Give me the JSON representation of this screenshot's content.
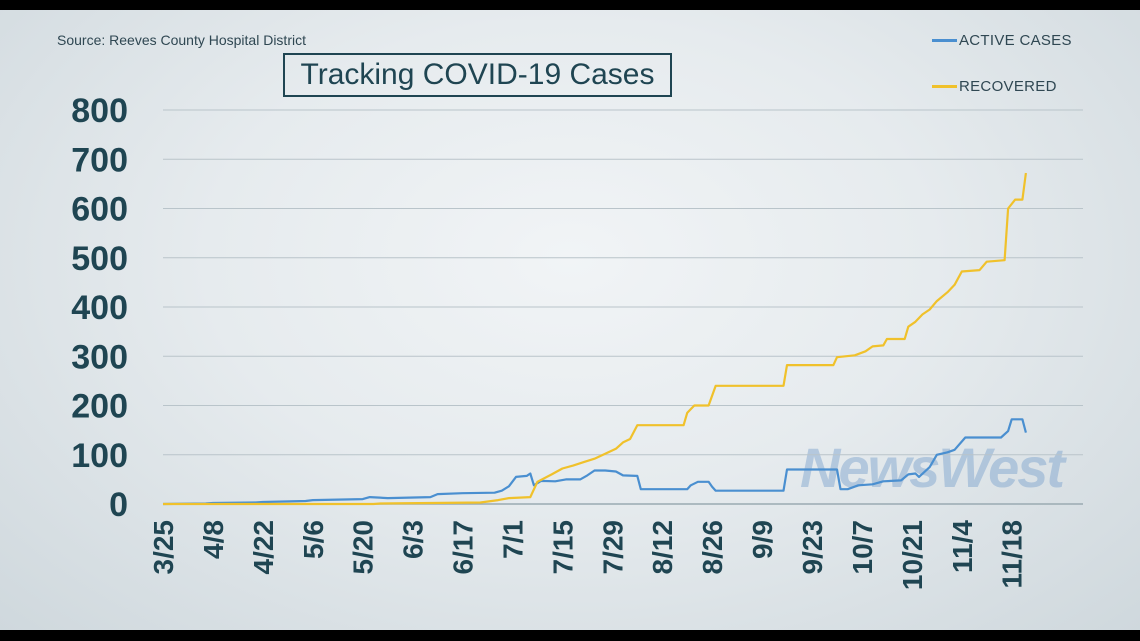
{
  "source": "Source: Reeves County Hospital District",
  "watermark": "NewsWest",
  "chart_data": {
    "type": "line",
    "title": "Tracking COVID-19 Cases",
    "xlabel": "",
    "ylabel": "",
    "ylim": [
      0,
      800
    ],
    "yticks": [
      0,
      100,
      200,
      300,
      400,
      500,
      600,
      700,
      800
    ],
    "x_range": [
      "2020-03-25",
      "2020-12-08"
    ],
    "xticks": [
      {
        "date": "2020-03-25",
        "label": "3/25"
      },
      {
        "date": "2020-04-08",
        "label": "4/8"
      },
      {
        "date": "2020-04-22",
        "label": "4/22"
      },
      {
        "date": "2020-05-06",
        "label": "5/6"
      },
      {
        "date": "2020-05-20",
        "label": "5/20"
      },
      {
        "date": "2020-06-03",
        "label": "6/3"
      },
      {
        "date": "2020-06-17",
        "label": "6/17"
      },
      {
        "date": "2020-07-01",
        "label": "7/1"
      },
      {
        "date": "2020-07-15",
        "label": "7/15"
      },
      {
        "date": "2020-07-29",
        "label": "7/29"
      },
      {
        "date": "2020-08-12",
        "label": "8/12"
      },
      {
        "date": "2020-08-26",
        "label": "8/26"
      },
      {
        "date": "2020-09-09",
        "label": "9/9"
      },
      {
        "date": "2020-09-23",
        "label": "9/23"
      },
      {
        "date": "2020-10-07",
        "label": "10/7"
      },
      {
        "date": "2020-10-21",
        "label": "10/21"
      },
      {
        "date": "2020-11-04",
        "label": "11/4"
      },
      {
        "date": "2020-11-18",
        "label": "11/18"
      }
    ],
    "grid": true,
    "legend_position": "top-right",
    "series": [
      {
        "name": "ACTIVE CASES",
        "color": "#4a8fd0",
        "points": [
          [
            "2020-03-25",
            0
          ],
          [
            "2020-04-06",
            1
          ],
          [
            "2020-04-08",
            2
          ],
          [
            "2020-04-20",
            3
          ],
          [
            "2020-04-22",
            4
          ],
          [
            "2020-05-04",
            6
          ],
          [
            "2020-05-06",
            8
          ],
          [
            "2020-05-20",
            10
          ],
          [
            "2020-05-22",
            14
          ],
          [
            "2020-05-27",
            12
          ],
          [
            "2020-06-08",
            14
          ],
          [
            "2020-06-10",
            20
          ],
          [
            "2020-06-17",
            22
          ],
          [
            "2020-06-26",
            23
          ],
          [
            "2020-06-28",
            27
          ],
          [
            "2020-06-30",
            36
          ],
          [
            "2020-07-02",
            55
          ],
          [
            "2020-07-05",
            57
          ],
          [
            "2020-07-06",
            62
          ],
          [
            "2020-07-07",
            38
          ],
          [
            "2020-07-09",
            47
          ],
          [
            "2020-07-13",
            46
          ],
          [
            "2020-07-16",
            50
          ],
          [
            "2020-07-20",
            50
          ],
          [
            "2020-07-22",
            58
          ],
          [
            "2020-07-24",
            68
          ],
          [
            "2020-07-27",
            68
          ],
          [
            "2020-07-30",
            66
          ],
          [
            "2020-08-01",
            58
          ],
          [
            "2020-08-05",
            57
          ],
          [
            "2020-08-06",
            30
          ],
          [
            "2020-08-19",
            30
          ],
          [
            "2020-08-20",
            38
          ],
          [
            "2020-08-22",
            45
          ],
          [
            "2020-08-25",
            45
          ],
          [
            "2020-08-26",
            35
          ],
          [
            "2020-08-27",
            27
          ],
          [
            "2020-09-15",
            27
          ],
          [
            "2020-09-16",
            70
          ],
          [
            "2020-09-30",
            70
          ],
          [
            "2020-10-01",
            30
          ],
          [
            "2020-10-03",
            30
          ],
          [
            "2020-10-06",
            38
          ],
          [
            "2020-10-10",
            40
          ],
          [
            "2020-10-13",
            46
          ],
          [
            "2020-10-18",
            48
          ],
          [
            "2020-10-20",
            60
          ],
          [
            "2020-10-22",
            62
          ],
          [
            "2020-10-23",
            55
          ],
          [
            "2020-10-26",
            75
          ],
          [
            "2020-10-28",
            100
          ],
          [
            "2020-10-31",
            105
          ],
          [
            "2020-11-02",
            110
          ],
          [
            "2020-11-05",
            135
          ],
          [
            "2020-11-15",
            135
          ],
          [
            "2020-11-17",
            148
          ],
          [
            "2020-11-18",
            172
          ],
          [
            "2020-11-21",
            172
          ],
          [
            "2020-11-22",
            145
          ]
        ]
      },
      {
        "name": "RECOVERED",
        "color": "#f0c12b",
        "points": [
          [
            "2020-03-25",
            0
          ],
          [
            "2020-05-23",
            0
          ],
          [
            "2020-05-25",
            1
          ],
          [
            "2020-06-22",
            3
          ],
          [
            "2020-06-27",
            8
          ],
          [
            "2020-06-30",
            12
          ],
          [
            "2020-07-06",
            14
          ],
          [
            "2020-07-08",
            45
          ],
          [
            "2020-07-12",
            60
          ],
          [
            "2020-07-15",
            72
          ],
          [
            "2020-07-18",
            78
          ],
          [
            "2020-07-21",
            85
          ],
          [
            "2020-07-24",
            92
          ],
          [
            "2020-07-27",
            102
          ],
          [
            "2020-07-30",
            112
          ],
          [
            "2020-08-01",
            125
          ],
          [
            "2020-08-03",
            132
          ],
          [
            "2020-08-05",
            160
          ],
          [
            "2020-08-18",
            160
          ],
          [
            "2020-08-19",
            185
          ],
          [
            "2020-08-21",
            200
          ],
          [
            "2020-08-25",
            200
          ],
          [
            "2020-08-27",
            240
          ],
          [
            "2020-09-15",
            240
          ],
          [
            "2020-09-16",
            282
          ],
          [
            "2020-09-29",
            282
          ],
          [
            "2020-09-30",
            298
          ],
          [
            "2020-10-05",
            302
          ],
          [
            "2020-10-08",
            310
          ],
          [
            "2020-10-10",
            320
          ],
          [
            "2020-10-13",
            322
          ],
          [
            "2020-10-14",
            335
          ],
          [
            "2020-10-19",
            335
          ],
          [
            "2020-10-20",
            360
          ],
          [
            "2020-10-22",
            370
          ],
          [
            "2020-10-24",
            385
          ],
          [
            "2020-10-26",
            395
          ],
          [
            "2020-10-28",
            412
          ],
          [
            "2020-10-31",
            430
          ],
          [
            "2020-11-02",
            445
          ],
          [
            "2020-11-04",
            472
          ],
          [
            "2020-11-09",
            475
          ],
          [
            "2020-11-11",
            492
          ],
          [
            "2020-11-16",
            495
          ],
          [
            "2020-11-17",
            600
          ],
          [
            "2020-11-19",
            618
          ],
          [
            "2020-11-21",
            618
          ],
          [
            "2020-11-22",
            672
          ]
        ]
      }
    ]
  }
}
